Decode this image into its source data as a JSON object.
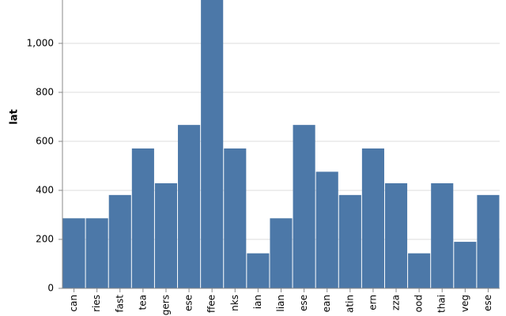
{
  "chart_data": {
    "type": "bar",
    "y_label": "lat",
    "categories": [
      "can",
      "ries",
      "fast",
      "tea",
      "gers",
      "ese",
      "ffee",
      "nks",
      "ian",
      "lian",
      "ese",
      "ean",
      "atin",
      "ern",
      "zza",
      "ood",
      "thai",
      "veg",
      "ese"
    ],
    "values": [
      286,
      286,
      381,
      571,
      429,
      667,
      1200,
      571,
      143,
      286,
      667,
      476,
      381,
      571,
      429,
      143,
      429,
      190,
      381
    ],
    "color": "#4c78a8",
    "ylim": [
      0,
      1177
    ],
    "yticks": [
      0,
      200,
      400,
      600,
      800,
      {
        "value": 1000,
        "label": "1,000"
      }
    ],
    "grid": true
  }
}
